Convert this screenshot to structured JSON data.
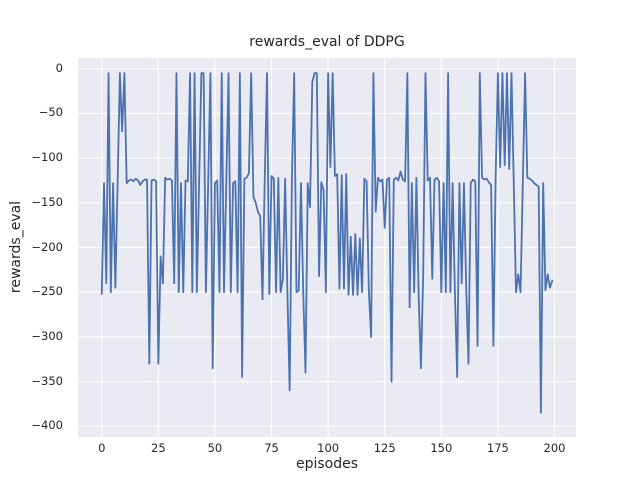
{
  "chart_data": {
    "type": "line",
    "title": "rewards_eval of DDPG",
    "xlabel": "episodes",
    "ylabel": "rewards_eval",
    "x_tick_labels": [
      "0",
      "25",
      "50",
      "75",
      "100",
      "125",
      "150",
      "175",
      "200"
    ],
    "x_tick_values": [
      0,
      25,
      50,
      75,
      100,
      125,
      150,
      175,
      200
    ],
    "y_tick_labels": [
      "0",
      "−50",
      "−100",
      "−150",
      "−200",
      "−250",
      "−300",
      "−350",
      "−400"
    ],
    "y_tick_values": [
      0,
      -50,
      -100,
      -150,
      -200,
      -250,
      -300,
      -350,
      -400
    ],
    "xlim": [
      -10.5,
      209.5
    ],
    "ylim": [
      -412,
      12
    ],
    "grid": true,
    "legend": "none",
    "colors": {
      "line": "#4c72b0",
      "axes_background": "#eaeaf2",
      "grid": "#ffffff",
      "figure_background": "#ffffff",
      "text": "#262626"
    },
    "series": [
      {
        "name": "rewards_eval",
        "x_is_episode_index_from": 0,
        "values": [
          -252,
          -128,
          -240,
          -5,
          -250,
          -128,
          -245,
          -128,
          -5,
          -70,
          -5,
          -128,
          -125,
          -124,
          -126,
          -123,
          -125,
          -130,
          -126,
          -124,
          -124,
          -330,
          -125,
          -124,
          -126,
          -330,
          -210,
          -240,
          -122,
          -124,
          -123,
          -125,
          -240,
          -5,
          -250,
          -128,
          -250,
          -125,
          -126,
          -5,
          -250,
          -5,
          -250,
          -128,
          -5,
          -5,
          -250,
          -128,
          -5,
          -335,
          -128,
          -125,
          -250,
          -5,
          -250,
          -128,
          -5,
          -250,
          -128,
          -126,
          -250,
          -5,
          -345,
          -123,
          -122,
          -117,
          -5,
          -143,
          -150,
          -160,
          -165,
          -258,
          -123,
          -5,
          -252,
          -120,
          -123,
          -250,
          -122,
          -250,
          -235,
          -123,
          -250,
          -360,
          -124,
          -5,
          -250,
          -248,
          -128,
          -250,
          -340,
          -128,
          -155,
          -15,
          -5,
          -5,
          -232,
          -127,
          -136,
          -250,
          -5,
          -110,
          -5,
          -120,
          -118,
          -246,
          -119,
          -246,
          -118,
          -253,
          -188,
          -253,
          -185,
          -253,
          -190,
          -250,
          -123,
          -126,
          -250,
          -300,
          -5,
          -160,
          -122,
          -126,
          -124,
          -178,
          -124,
          -122,
          -350,
          -124,
          -122,
          -125,
          -115,
          -124,
          -126,
          -5,
          -267,
          -128,
          -250,
          -122,
          -255,
          -335,
          -230,
          -5,
          -125,
          -122,
          -235,
          -124,
          -122,
          -126,
          -250,
          -128,
          -250,
          -5,
          -250,
          -128,
          -250,
          -345,
          -128,
          -240,
          -128,
          -245,
          -330,
          -128,
          -124,
          -126,
          -310,
          -5,
          -122,
          -124,
          -123,
          -127,
          -130,
          -310,
          -122,
          -5,
          -110,
          -5,
          -108,
          -5,
          -112,
          -5,
          -128,
          -250,
          -230,
          -250,
          -128,
          -5,
          -122,
          -123,
          -125,
          -128,
          -130,
          -132,
          -385,
          -128,
          -248,
          -230,
          -245,
          -237
        ]
      }
    ]
  }
}
